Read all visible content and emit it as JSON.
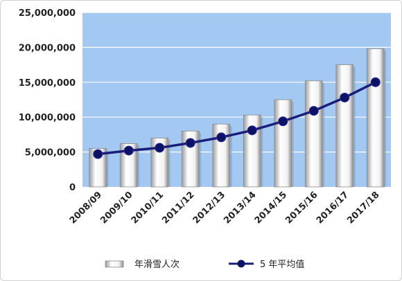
{
  "chart_data": {
    "type": "bar",
    "categories": [
      "2008/09",
      "2009/10",
      "2010/11",
      "2011/12",
      "2012/13",
      "2013/14",
      "2014/15",
      "2015/16",
      "2016/17",
      "2017/18"
    ],
    "series": [
      {
        "name": "年滑雪人次",
        "type": "bar",
        "values": [
          5500000,
          6200000,
          7000000,
          8000000,
          9000000,
          10300000,
          12500000,
          15200000,
          17500000,
          19800000
        ]
      },
      {
        "name": "5 年平均值",
        "type": "line",
        "values": [
          4700000,
          5200000,
          5600000,
          6300000,
          7100000,
          8100000,
          9400000,
          10900000,
          12800000,
          15000000
        ]
      }
    ],
    "y_ticks": [
      "0",
      "5,000,000",
      "10,000,000",
      "15,000,000",
      "20,000,000",
      "25,000,000"
    ],
    "ylim": [
      0,
      25000000
    ],
    "grid": true,
    "legend_position": "bottom",
    "colors": {
      "plot_background": "#a3c8f1",
      "bar_fill": "#f4f4f4",
      "line": "#1a1e7a",
      "marker": "#0e1266",
      "gridline": "#ffffff"
    }
  }
}
